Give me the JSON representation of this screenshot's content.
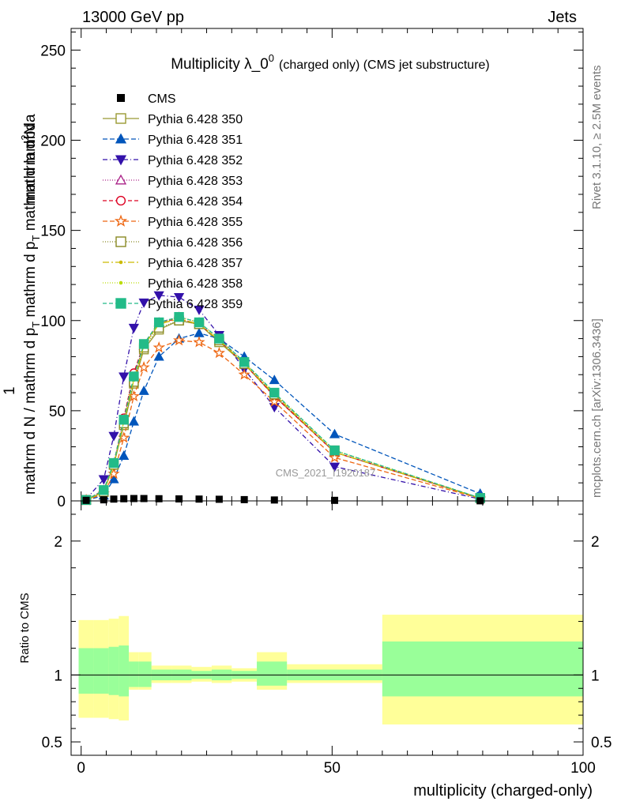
{
  "header": {
    "left": "13000 GeV pp",
    "right": "Jets"
  },
  "side_labels": {
    "rivet": "Rivet 3.1.10, ≥ 2.5M events",
    "mcplots": "mcplots.cern.ch [arXiv:1306.3436]"
  },
  "chart_data": {
    "type": "line",
    "title_main": "Multiplicity λ_0",
    "title_sup": "0",
    "title_sub": "(charged only) (CMS jet substructure)",
    "watermark": "CMS_2021_I1920187",
    "xlabel": "multiplicity (charged-only)",
    "ylabel_top": "mathrm d",
    "ylabel_top_sup": "2",
    "ylabel_top_end": "N",
    "ylabel_num": "1",
    "ylabel_bottom_a": "mathrm d N / mathrm d p",
    "ylabel_bottom_b": "T",
    "ylabel_bottom_c": " mathrm d p",
    "ylabel_bottom_d": "T",
    "ylabel_bottom_e": " mathrm d lambda",
    "ratio_ylabel": "Ratio to CMS",
    "xlim": [
      -2,
      100
    ],
    "ylim": [
      0,
      262
    ],
    "ratio_ylim": [
      0.4,
      2.3
    ],
    "x_ticks": [
      0,
      50,
      100
    ],
    "y_ticks": [
      0,
      50,
      100,
      150,
      200,
      250
    ],
    "ratio_ticks": [
      0.5,
      1,
      2
    ],
    "ratio_tick_labels": [
      "0.5",
      "1",
      "2"
    ],
    "x_tick_labels": [
      "0",
      "50",
      "100"
    ],
    "y_tick_labels": [
      "0",
      "50",
      "100",
      "150",
      "200",
      "250"
    ],
    "bins": [
      [
        -0.5,
        2.5
      ],
      [
        2.5,
        5.5
      ],
      [
        5.5,
        7.5
      ],
      [
        7.5,
        9.5
      ],
      [
        9.5,
        11.5
      ],
      [
        11.5,
        14
      ],
      [
        14,
        18
      ],
      [
        18,
        22
      ],
      [
        22,
        26
      ],
      [
        26,
        30
      ],
      [
        30,
        35
      ],
      [
        35,
        41
      ],
      [
        41,
        60
      ],
      [
        60,
        100
      ]
    ],
    "x_points": [
      1,
      4.5,
      6.5,
      8.5,
      10.5,
      12.5,
      15.5,
      19.5,
      23.5,
      27.5,
      32.5,
      38.5,
      50.5,
      79.5
    ],
    "data": {
      "name": "CMS",
      "y": [
        0.3,
        0.6,
        1.0,
        1.2,
        1.3,
        1.3,
        1.2,
        1.1,
        1.0,
        0.9,
        0.7,
        0.5,
        0.3,
        0.05
      ]
    },
    "ratio_band_stat": [
      [
        0.86,
        1.2
      ],
      [
        0.86,
        1.2
      ],
      [
        0.85,
        1.21
      ],
      [
        0.84,
        1.22
      ],
      [
        0.91,
        1.1
      ],
      [
        0.91,
        1.1
      ],
      [
        0.96,
        1.04
      ],
      [
        0.96,
        1.04
      ],
      [
        0.97,
        1.03
      ],
      [
        0.96,
        1.04
      ],
      [
        0.97,
        1.03
      ],
      [
        0.92,
        1.1
      ],
      [
        0.96,
        1.04
      ],
      [
        0.84,
        1.25
      ]
    ],
    "ratio_band_total": [
      [
        0.68,
        1.41
      ],
      [
        0.68,
        1.41
      ],
      [
        0.67,
        1.42
      ],
      [
        0.66,
        1.44
      ],
      [
        0.89,
        1.17
      ],
      [
        0.89,
        1.17
      ],
      [
        0.94,
        1.07
      ],
      [
        0.94,
        1.07
      ],
      [
        0.95,
        1.06
      ],
      [
        0.94,
        1.07
      ],
      [
        0.95,
        1.05
      ],
      [
        0.89,
        1.17
      ],
      [
        0.94,
        1.08
      ],
      [
        0.63,
        1.45
      ]
    ],
    "series": [
      {
        "name": "Pythia 6.428 350",
        "color": "#999933",
        "marker": "square-open",
        "dash": "",
        "y": [
          0.5,
          5,
          20,
          42,
          65,
          84,
          95,
          100,
          98,
          88,
          76,
          58,
          27,
          1.5
        ]
      },
      {
        "name": "Pythia 6.428 351",
        "color": "#0055bb",
        "marker": "triangle-up",
        "dash": "6,3",
        "y": [
          0.3,
          3,
          12,
          25,
          44,
          61,
          80,
          90,
          93,
          90,
          80,
          67,
          37,
          4
        ]
      },
      {
        "name": "Pythia 6.428 352",
        "color": "#3311aa",
        "marker": "triangle-down",
        "dash": "6,3,1,3",
        "y": [
          1,
          12,
          36,
          69,
          96,
          110,
          114,
          113,
          106,
          92,
          73,
          52,
          19,
          1
        ]
      },
      {
        "name": "Pythia 6.428 353",
        "color": "#aa2288",
        "marker": "triangle-open",
        "dash": "1,2",
        "y": [
          0.5,
          6,
          21,
          45,
          70,
          86,
          99,
          102,
          99,
          90,
          77,
          59,
          27,
          1.5
        ]
      },
      {
        "name": "Pythia 6.428 354",
        "color": "#dd0022",
        "marker": "circle-open",
        "dash": "5,3",
        "y": [
          0.5,
          6,
          21,
          46,
          71,
          87,
          99,
          101,
          98,
          89,
          76,
          58,
          27,
          1.5
        ]
      },
      {
        "name": "Pythia 6.428 355",
        "color": "#ee6611",
        "marker": "star-open",
        "dash": "6,3",
        "y": [
          0.4,
          4,
          15,
          35,
          58,
          74,
          85,
          89,
          88,
          82,
          70,
          55,
          24,
          1.3
        ]
      },
      {
        "name": "Pythia 6.428 356",
        "color": "#888822",
        "marker": "square-open",
        "dash": "1,2",
        "y": [
          0.5,
          5,
          20,
          43,
          66,
          85,
          96,
          100,
          98,
          89,
          76,
          59,
          28,
          1.6
        ]
      },
      {
        "name": "Pythia 6.428 357",
        "color": "#ccbb00",
        "marker": "dot",
        "dash": "8,3,2,3",
        "y": [
          0.5,
          5,
          20,
          44,
          67,
          86,
          98,
          101,
          98,
          89,
          76,
          59,
          27,
          1.5
        ]
      },
      {
        "name": "Pythia 6.428 358",
        "color": "#bbdd00",
        "marker": "dot",
        "dash": "1,2",
        "y": [
          0.5,
          5,
          20,
          44,
          68,
          86,
          98,
          102,
          99,
          90,
          77,
          60,
          28,
          1.6
        ]
      },
      {
        "name": "Pythia 6.428 359",
        "color": "#22bb88",
        "marker": "square-filled",
        "dash": "5,3",
        "y": [
          0.5,
          6,
          21,
          45,
          69,
          87,
          99,
          102,
          99,
          90,
          77,
          60,
          28,
          1.6
        ]
      }
    ],
    "grid": false,
    "legend_position": "top-left"
  }
}
